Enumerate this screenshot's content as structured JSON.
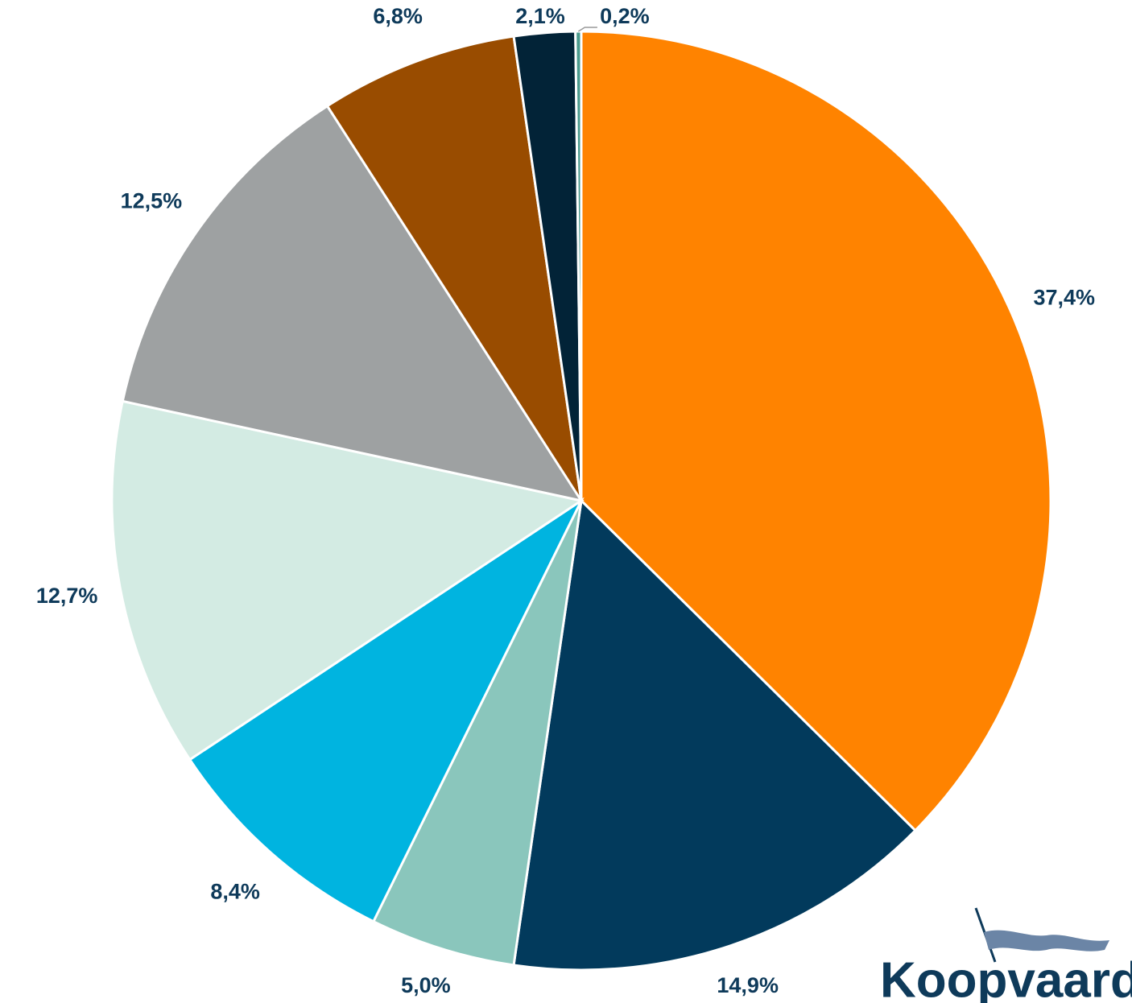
{
  "chart_data": {
    "type": "pie",
    "values": [
      37.4,
      14.9,
      5.0,
      8.4,
      12.7,
      12.5,
      6.8,
      2.1,
      0.2
    ],
    "value_labels": [
      "37,4%",
      "14,9%",
      "5,0%",
      "8,4%",
      "12,7%",
      "12,5%",
      "6,8%",
      "2,1%",
      "0,2%"
    ],
    "colors": [
      "#ff8300",
      "#023a5c",
      "#8ac6bc",
      "#00b4e0",
      "#d3ebe3",
      "#9ea1a2",
      "#994c00",
      "#022337",
      "#4a9a8c"
    ],
    "start_angle": 0,
    "direction": "clockwise"
  },
  "logo": "Koopvaard"
}
